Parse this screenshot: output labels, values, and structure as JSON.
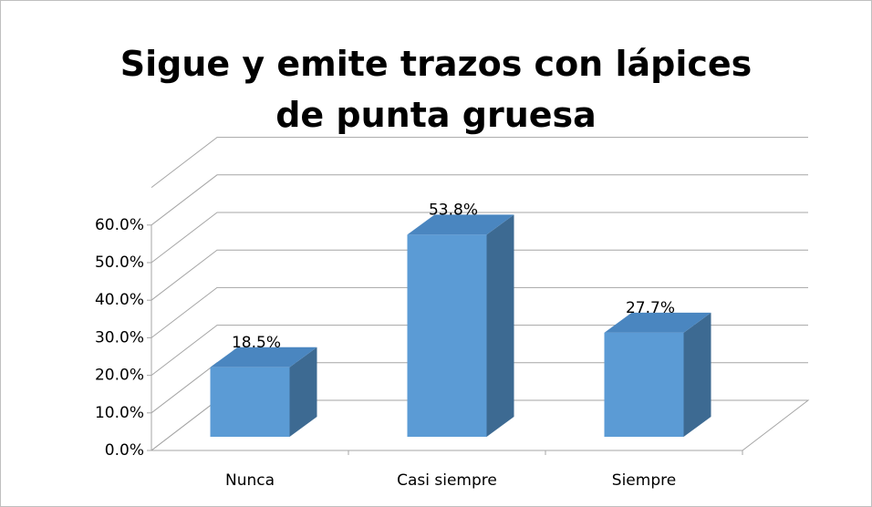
{
  "chart_data": {
    "type": "bar3d",
    "title": "Sigue y emite trazos con lápices de punta gruesa",
    "categories": [
      "Nunca",
      "Casi siempre",
      "Siempre"
    ],
    "values": [
      18.5,
      53.8,
      27.7
    ],
    "value_labels": [
      "18.5%",
      "53.8%",
      "27.7%"
    ],
    "color": "#5b9bd5",
    "ylim": [
      0,
      70
    ],
    "yticks": [
      {
        "value": 0,
        "label": "0.0%"
      },
      {
        "value": 10,
        "label": "10.0%"
      },
      {
        "value": 20,
        "label": "20.0%"
      },
      {
        "value": 30,
        "label": "30.0%"
      },
      {
        "value": 40,
        "label": "40.0%"
      },
      {
        "value": 50,
        "label": "50.0%"
      },
      {
        "value": 60,
        "label": "60.0%"
      }
    ],
    "grid": true
  }
}
